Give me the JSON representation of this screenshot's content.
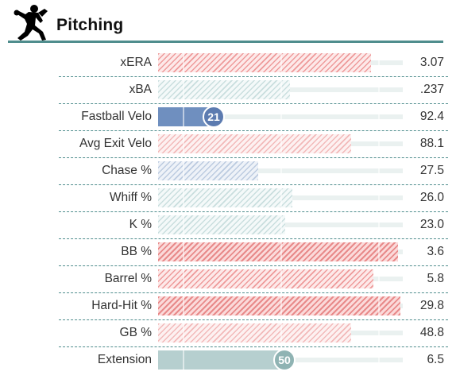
{
  "header": {
    "title": "Pitching",
    "icon": "pitcher-icon"
  },
  "colors": {
    "accent": "#4f8d8d",
    "bad": "#e88a8a",
    "good": "#6f8fbf",
    "neutral": "#b6cfcf"
  },
  "rows": [
    {
      "label": "xERA",
      "value": "3.07",
      "percentile": 87,
      "style": "hatch-red"
    },
    {
      "label": "xBA",
      "value": ".237",
      "percentile": 54,
      "style": "hatch-teal"
    },
    {
      "label": "Fastball Velo",
      "value": "92.4",
      "percentile": 21,
      "style": "solid-blue",
      "badge": "21",
      "badge_color": "blue"
    },
    {
      "label": "Avg Exit Velo",
      "value": "88.1",
      "percentile": 79,
      "style": "hatch-pink"
    },
    {
      "label": "Chase %",
      "value": "27.5",
      "percentile": 41,
      "style": "hatch-blue"
    },
    {
      "label": "Whiff %",
      "value": "26.0",
      "percentile": 55,
      "style": "hatch-teal"
    },
    {
      "label": "K %",
      "value": "23.0",
      "percentile": 52,
      "style": "hatch-teal"
    },
    {
      "label": "BB %",
      "value": "3.6",
      "percentile": 98,
      "style": "hatch-red-strong"
    },
    {
      "label": "Barrel %",
      "value": "5.8",
      "percentile": 88,
      "style": "hatch-red"
    },
    {
      "label": "Hard-Hit %",
      "value": "29.8",
      "percentile": 99,
      "style": "hatch-red-strong"
    },
    {
      "label": "GB %",
      "value": "48.8",
      "percentile": 79,
      "style": "hatch-pink"
    },
    {
      "label": "Extension",
      "value": "6.5",
      "percentile": 50,
      "style": "solid-teal",
      "badge": "50",
      "badge_color": "teal"
    }
  ]
}
